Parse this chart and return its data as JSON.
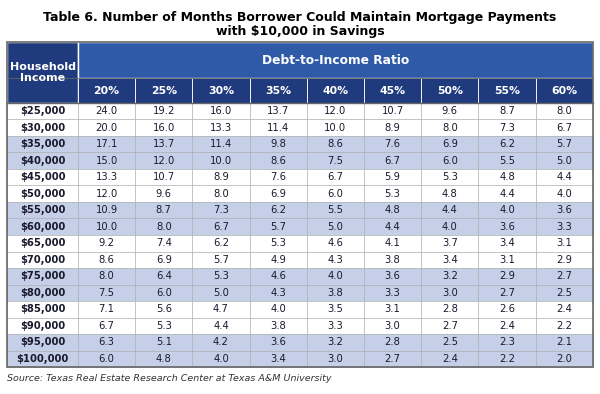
{
  "title_line1": "Table 6. Number of Months Borrower Could Maintain Mortgage Payments",
  "title_line2": "with $10,000 in Savings",
  "header_col": "Household\nIncome",
  "subheader": "Debt-to-Income Ratio",
  "col_headers": [
    "20%",
    "25%",
    "30%",
    "35%",
    "40%",
    "45%",
    "50%",
    "55%",
    "60%"
  ],
  "row_labels": [
    "$25,000",
    "$30,000",
    "$35,000",
    "$40,000",
    "$45,000",
    "$50,000",
    "$55,000",
    "$60,000",
    "$65,000",
    "$70,000",
    "$75,000",
    "$80,000",
    "$85,000",
    "$90,000",
    "$95,000",
    "$100,000"
  ],
  "table_data": [
    [
      24.0,
      19.2,
      16.0,
      13.7,
      12.0,
      10.7,
      9.6,
      8.7,
      8.0
    ],
    [
      20.0,
      16.0,
      13.3,
      11.4,
      10.0,
      8.9,
      8.0,
      7.3,
      6.7
    ],
    [
      17.1,
      13.7,
      11.4,
      9.8,
      8.6,
      7.6,
      6.9,
      6.2,
      5.7
    ],
    [
      15.0,
      12.0,
      10.0,
      8.6,
      7.5,
      6.7,
      6.0,
      5.5,
      5.0
    ],
    [
      13.3,
      10.7,
      8.9,
      7.6,
      6.7,
      5.9,
      5.3,
      4.8,
      4.4
    ],
    [
      12.0,
      9.6,
      8.0,
      6.9,
      6.0,
      5.3,
      4.8,
      4.4,
      4.0
    ],
    [
      10.9,
      8.7,
      7.3,
      6.2,
      5.5,
      4.8,
      4.4,
      4.0,
      3.6
    ],
    [
      10.0,
      8.0,
      6.7,
      5.7,
      5.0,
      4.4,
      4.0,
      3.6,
      3.3
    ],
    [
      9.2,
      7.4,
      6.2,
      5.3,
      4.6,
      4.1,
      3.7,
      3.4,
      3.1
    ],
    [
      8.6,
      6.9,
      5.7,
      4.9,
      4.3,
      3.8,
      3.4,
      3.1,
      2.9
    ],
    [
      8.0,
      6.4,
      5.3,
      4.6,
      4.0,
      3.6,
      3.2,
      2.9,
      2.7
    ],
    [
      7.5,
      6.0,
      5.0,
      4.3,
      3.8,
      3.3,
      3.0,
      2.7,
      2.5
    ],
    [
      7.1,
      5.6,
      4.7,
      4.0,
      3.5,
      3.1,
      2.8,
      2.6,
      2.4
    ],
    [
      6.7,
      5.3,
      4.4,
      3.8,
      3.3,
      3.0,
      2.7,
      2.4,
      2.2
    ],
    [
      6.3,
      5.1,
      4.2,
      3.6,
      3.2,
      2.8,
      2.5,
      2.3,
      2.1
    ],
    [
      6.0,
      4.8,
      4.0,
      3.4,
      3.0,
      2.7,
      2.4,
      2.2,
      2.0
    ]
  ],
  "source_text": "Source: Texas Real Estate Research Center at Texas A&M University",
  "header_bg": "#1F3A7D",
  "header_fg": "#FFFFFF",
  "subheader_bg": "#2E5AA8",
  "row_shaded_bg": "#C5CFE8",
  "row_white_bg": "#FFFFFF",
  "title_color": "#000000",
  "body_text_color": "#1A1A2E",
  "source_color": "#333333",
  "fig_width": 6.0,
  "fig_height": 3.94,
  "dpi": 100
}
